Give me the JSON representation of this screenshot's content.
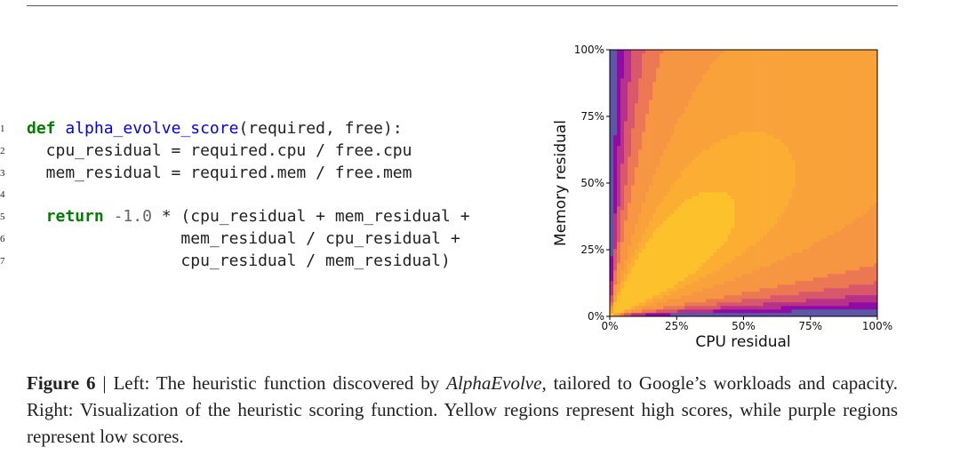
{
  "code": {
    "lines": [
      {
        "number": 1,
        "segments": [
          "def",
          " ",
          "alpha_evolve_score",
          "(required, free):"
        ]
      },
      {
        "number": 2,
        "segments": [
          "  cpu_residual = required.cpu / free.cpu"
        ]
      },
      {
        "number": 3,
        "segments": [
          "  mem_residual = required.mem / free.mem"
        ]
      },
      {
        "number": 4
      },
      {
        "number": 5,
        "segments": [
          "  ",
          "return",
          " ",
          "-1.0",
          " * (cpu_residual + mem_residual +"
        ]
      },
      {
        "number": 6,
        "segments": [
          "                mem_residual / cpu_residual +"
        ]
      },
      {
        "number": 7,
        "segments": [
          "                cpu_residual / mem_residual)"
        ]
      }
    ]
  },
  "chart_data": {
    "type": "contour",
    "xlabel": "CPU residual",
    "ylabel": "Memory residual",
    "xlim": [
      0,
      100
    ],
    "ylim": [
      0,
      100
    ],
    "xticks": [
      {
        "value": 0,
        "label": "0%"
      },
      {
        "value": 25,
        "label": "25%"
      },
      {
        "value": 50,
        "label": "50%"
      },
      {
        "value": 75,
        "label": "75%"
      },
      {
        "value": 100,
        "label": "100%"
      }
    ],
    "yticks": [
      {
        "value": 0,
        "label": "0%"
      },
      {
        "value": 25,
        "label": "25%"
      },
      {
        "value": 50,
        "label": "50%"
      },
      {
        "value": 75,
        "label": "75%"
      },
      {
        "value": 100,
        "label": "100%"
      }
    ]
  },
  "caption": {
    "label": "Figure 6",
    "text_before": " | Left: The heuristic function discovered by ",
    "emphasis": "AlphaEvolve",
    "text_after": ", tailored to Google’s workloads and capacity. Right: Visualization of the heuristic scoring function. Yellow regions represent high scores, while purple regions represent low scores."
  }
}
